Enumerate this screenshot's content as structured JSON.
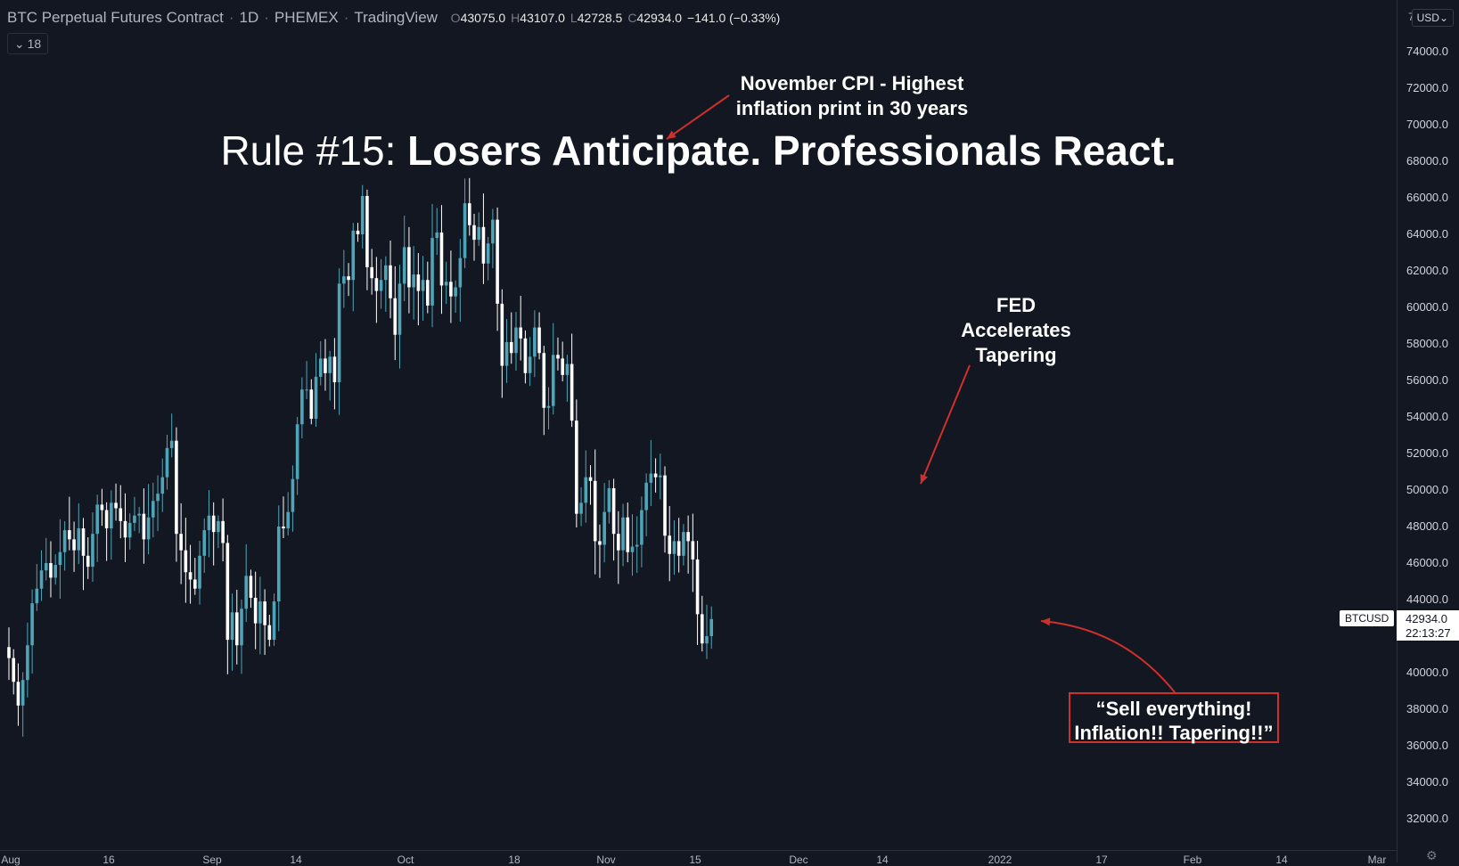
{
  "header": {
    "symbol_name": "BTC Perpetual Futures Contract",
    "interval": "1D",
    "exchange": "PHEMEX",
    "provider": "TradingView",
    "open_label": "O",
    "open_value": "43075.0",
    "high_label": "H",
    "high_value": "43107.0",
    "low_label": "L",
    "low_value": "42728.5",
    "close_label": "C",
    "close_value": "42934.0",
    "change": "−141.0 (−0.33%)",
    "indicator_count": "18"
  },
  "currency": "USD",
  "currency_left": "7",
  "title": {
    "prefix": "Rule #15: ",
    "bold": "Losers Anticipate. Professionals React."
  },
  "annotations": {
    "cpi": [
      "November CPI  - Highest",
      "inflation print in 30 years"
    ],
    "fed": [
      "FED",
      "Accelerates",
      "Tapering"
    ],
    "callout": [
      "“Sell everything!",
      "Inflation!! Tapering!!”"
    ]
  },
  "last_price": {
    "symbol": "BTCUSD",
    "price": "42934.0",
    "countdown": "22:13:27"
  },
  "y_axis_labels": [
    "74000.0",
    "72000.0",
    "70000.0",
    "68000.0",
    "66000.0",
    "64000.0",
    "62000.0",
    "60000.0",
    "58000.0",
    "56000.0",
    "54000.0",
    "52000.0",
    "50000.0",
    "48000.0",
    "46000.0",
    "44000.0",
    "40000.0",
    "38000.0",
    "36000.0",
    "34000.0",
    "32000.0"
  ],
  "x_axis_labels": [
    "Aug",
    "16",
    "Sep",
    "14",
    "Oct",
    "18",
    "Nov",
    "15",
    "Dec",
    "14",
    "2022",
    "17",
    "Feb",
    "14",
    "Mar"
  ],
  "colors": {
    "background": "#131722",
    "up_candle": "#4fa5b8",
    "down_candle": "#ffffff",
    "arrow": "#d0302b"
  },
  "chart_data": {
    "type": "candlestick",
    "title": "",
    "xlabel": "",
    "ylabel": "",
    "ylim": [
      31000,
      75000
    ],
    "x": [
      "Aug",
      "16",
      "Sep",
      "14",
      "Oct",
      "18",
      "Nov",
      "15",
      "Dec",
      "14",
      "2022",
      "17",
      "Feb",
      "14",
      "Mar"
    ],
    "close_series": [
      40800,
      39500,
      38200,
      39600,
      41500,
      43800,
      44600,
      45600,
      46000,
      45200,
      45900,
      46600,
      47800,
      47300,
      46700,
      47900,
      46400,
      45800,
      47600,
      49200,
      48900,
      47900,
      49300,
      49000,
      48300,
      47400,
      48200,
      48600,
      48700,
      47300,
      48500,
      49400,
      49800,
      50700,
      52300,
      52700,
      47600,
      46700,
      45500,
      45100,
      44600,
      46400,
      47800,
      48600,
      47700,
      48300,
      47100,
      41800,
      43300,
      41500,
      43500,
      45300,
      44100,
      42700,
      43900,
      42600,
      41800,
      43900,
      48000,
      47900,
      48800,
      50600,
      53600,
      55500,
      55500,
      53900,
      56200,
      57200,
      56400,
      57300,
      55900,
      61300,
      61700,
      61500,
      64200,
      64000,
      66100,
      62200,
      61600,
      60900,
      61500,
      62300,
      60500,
      58500,
      61300,
      63300,
      61100,
      61800,
      60900,
      61500,
      60100,
      63800,
      64100,
      61200,
      61400,
      60600,
      61100,
      62700,
      65700,
      64500,
      63700,
      64400,
      62400,
      63500,
      64800,
      60200,
      56800,
      58100,
      57500,
      58900,
      58300,
      56400,
      57300,
      58900,
      57500,
      54500,
      54600,
      57400,
      57200,
      56300,
      56900,
      53800,
      48700,
      49300,
      50700,
      50500,
      47200,
      47000,
      48800,
      50100,
      47600,
      46700,
      48500,
      46600,
      46900,
      47000,
      48900,
      50400,
      50900,
      50700,
      50800,
      47500,
      46500,
      47200,
      46400,
      47700,
      47200,
      46200,
      43200,
      41600,
      42000,
      42934
    ]
  }
}
